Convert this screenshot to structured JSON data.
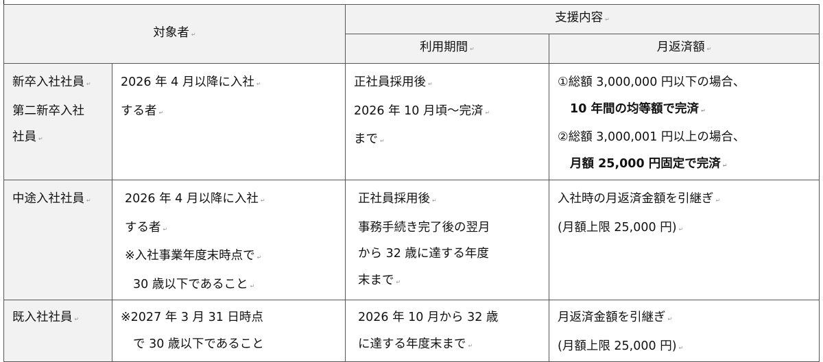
{
  "header": {
    "target": "対象者",
    "support": "支援内容",
    "period": "利用期間",
    "repayment": "月返済額"
  },
  "rows": [
    {
      "category": [
        {
          "text": "新卒入社社員",
          "pm": true
        },
        {
          "text": "第二新卒入社"
        },
        {
          "text": "社員",
          "pm": true
        }
      ],
      "condition": [
        {
          "text": "2026 年 4 月以降に入社",
          "pm": true
        },
        {
          "text": "する者",
          "pm": true
        }
      ],
      "period": [
        {
          "text": "正社員採用後",
          "pm": true
        },
        {
          "text": "2026 年 10 月頃～完済",
          "pm": true
        },
        {
          "text": "まで",
          "pm": true
        }
      ],
      "repayment": [
        {
          "text": "①総額 3,000,000 円以下の場合、"
        },
        {
          "text": "10 年間の均等額で完済",
          "bold": true,
          "indent": true,
          "pm": true
        },
        {
          "text": "②総額 3,000,001 円以上の場合、"
        },
        {
          "text": "月額 25,000 円固定で完済",
          "bold": true,
          "indent": true,
          "pm": true
        }
      ]
    },
    {
      "category": [
        {
          "text": "中途入社社員",
          "pm": true
        }
      ],
      "condition": [
        {
          "text": "2026 年 4 月以降に入社",
          "pm": true
        },
        {
          "text": "する者",
          "pm": true
        },
        {
          "text": "※入社事業年度末時点で",
          "pm": true
        },
        {
          "text": "30 歳以下であること",
          "indent": true,
          "pm": true
        }
      ],
      "period": [
        {
          "text": "正社員採用後",
          "pm": true
        },
        {
          "text": "事務手続き完了後の翌月"
        },
        {
          "text": "から 32 歳に達する年度"
        },
        {
          "text": "末まで",
          "pm": true
        }
      ],
      "repayment": [
        {
          "text": "入社時の月返済金額を引継ぎ",
          "pm": true
        },
        {
          "text": "(月額上限 25,000 円)",
          "pm": true
        }
      ]
    },
    {
      "category": [
        {
          "text": "既入社社員",
          "pm": true
        }
      ],
      "condition": [
        {
          "text": "※2027 年 3 月 31 日時点"
        },
        {
          "text": "で 30 歳以下であること",
          "indent": true
        }
      ],
      "period": [
        {
          "text": "2026 年 10 月から 32 歳"
        },
        {
          "text": "に達する年度末まで",
          "pm": true
        }
      ],
      "repayment": [
        {
          "text": "月返済金額を引継ぎ",
          "pm": true
        },
        {
          "text": "(月額上限 25,000 円)",
          "pm": true
        }
      ]
    }
  ]
}
